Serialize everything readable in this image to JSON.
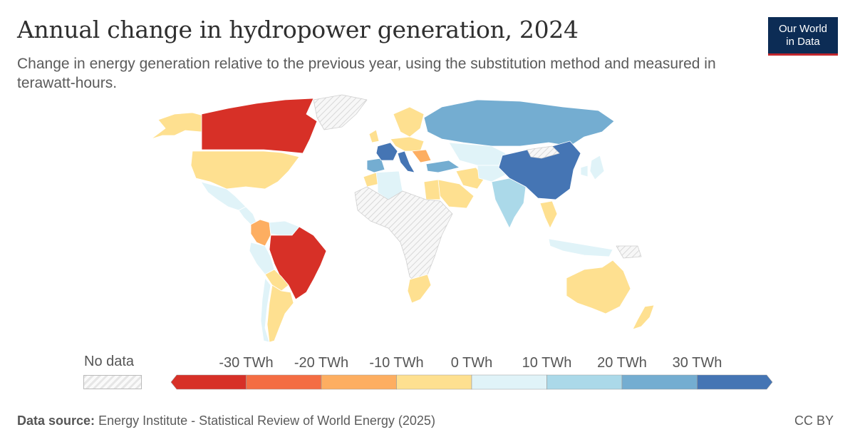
{
  "header": {
    "title": "Annual change in hydropower generation, 2024",
    "subtitle": "Change in energy generation relative to the previous year, using the substitution method and measured in terawatt-hours."
  },
  "logo": {
    "line1": "Our World",
    "line2": "in Data"
  },
  "legend": {
    "no_data_label": "No data",
    "ticks": [
      "-30 TWh",
      "-20 TWh",
      "-10 TWh",
      "0 TWh",
      "10 TWh",
      "20 TWh",
      "30 TWh"
    ],
    "bins": [
      {
        "range": "< -30",
        "color": "#d73027"
      },
      {
        "range": "-30 to -20",
        "color": "#f46d43"
      },
      {
        "range": "-20 to -10",
        "color": "#fdae61"
      },
      {
        "range": "-10 to 0",
        "color": "#fee090"
      },
      {
        "range": "0 to 10",
        "color": "#e0f3f8"
      },
      {
        "range": "10 to 20",
        "color": "#abd9e9"
      },
      {
        "range": "20 to 30",
        "color": "#74add1"
      },
      {
        "range": "> 30",
        "color": "#4575b4"
      }
    ]
  },
  "regions": [
    {
      "name": "Canada",
      "bin": 0
    },
    {
      "name": "Brazil",
      "bin": 0
    },
    {
      "name": "Colombia",
      "bin": 2
    },
    {
      "name": "United States",
      "bin": 3
    },
    {
      "name": "Argentina",
      "bin": 3
    },
    {
      "name": "Australia",
      "bin": 3
    },
    {
      "name": "New Zealand",
      "bin": 3
    },
    {
      "name": "South Africa",
      "bin": 3
    },
    {
      "name": "Saudi Arabia",
      "bin": 3
    },
    {
      "name": "Mexico",
      "bin": 4
    },
    {
      "name": "Algeria",
      "bin": 4
    },
    {
      "name": "Kazakhstan",
      "bin": 4
    },
    {
      "name": "Chile",
      "bin": 4
    },
    {
      "name": "India",
      "bin": 5
    },
    {
      "name": "Russia",
      "bin": 6
    },
    {
      "name": "France",
      "bin": 7
    },
    {
      "name": "China",
      "bin": 7
    }
  ],
  "footer": {
    "source_label": "Data source:",
    "source_text": "Energy Institute - Statistical Review of World Energy (2025)",
    "license": "CC BY"
  }
}
